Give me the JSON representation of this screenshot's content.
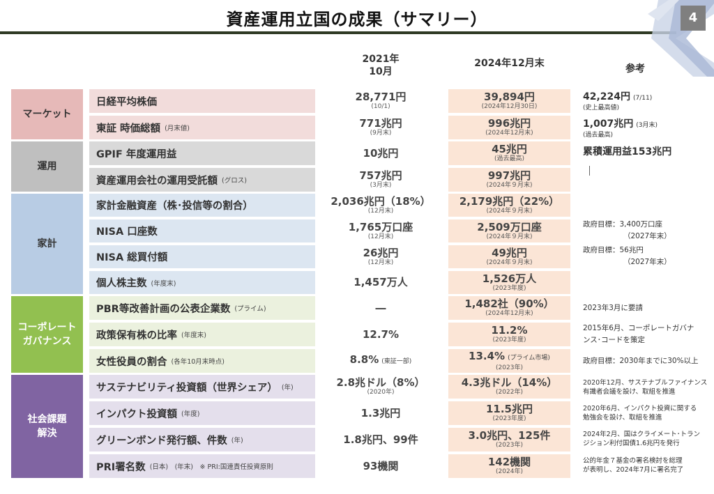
{
  "title": "資産運用立国の成果（サマリー）",
  "page_number": "4",
  "columns": {
    "col2021_line1": "2021年",
    "col2021_line2": "10月",
    "col2024": "2024年12月末",
    "ref": "参考"
  },
  "groups": {
    "market": "マーケット",
    "unyo": "運用",
    "kakei": "家計",
    "cg_line1": "コーポレート",
    "cg_line2": "ガバナンス",
    "social_line1": "社会課題",
    "social_line2": "解決"
  },
  "rows": [
    {
      "label": "日経平均株価",
      "sub": "",
      "v2021": "28,771円",
      "v2021_note": "(10/1)",
      "v2024": "39,894円",
      "v2024_note": "(2024年12月30日)",
      "ref_main": "42,224円",
      "ref_main_note": "(7/11)",
      "ref_sub": "(史上最高値)"
    },
    {
      "label": "東証 時価総額",
      "sub": "(月末値)",
      "v2021": "771兆円",
      "v2021_note": "(9月末)",
      "v2024": "996兆円",
      "v2024_note": "(2024年12月末)",
      "ref_main": "1,007兆円",
      "ref_main_note": "(3月末)",
      "ref_sub": "(過去最高)"
    },
    {
      "label": "GPIF 年度運用益",
      "sub": "",
      "v2021": "10兆円",
      "v2021_note": "",
      "v2024": "45兆円",
      "v2024_note": "(過去最高)",
      "ref_main": "累積運用益153兆円",
      "ref_main_note": "",
      "ref_sub": ""
    },
    {
      "label": "資産運用会社の運用受託額",
      "sub": "(グロス)",
      "v2021": "757兆円",
      "v2021_note": "(3月末)",
      "v2024": "997兆円",
      "v2024_note": "(2024年９月末)",
      "ref_main": "",
      "ref_main_note": "",
      "ref_sub": ""
    },
    {
      "label": "家計金融資産（株･投信等の割合）",
      "sub": "",
      "v2021": "2,036兆円（18%）",
      "v2021_note": "(12月末)",
      "v2024": "2,179兆円（22%）",
      "v2024_note": "(2024年９月末)",
      "ref_main": "",
      "ref_main_note": "",
      "ref_sub": ""
    },
    {
      "label": "NISA 口座数",
      "sub": "",
      "v2021": "1,765万口座",
      "v2021_note": "(12月末)",
      "v2024": "2,509万口座",
      "v2024_note": "(2024年９月末)",
      "ref_line1": "政府目標：3,400万口座",
      "ref_line2": "（2027年末）"
    },
    {
      "label": "NISA 総買付額",
      "sub": "",
      "v2021": "26兆円",
      "v2021_note": "(12月末)",
      "v2024": "49兆円",
      "v2024_note": "(2024年９月末)",
      "ref_line1": "政府目標：56兆円",
      "ref_line2": "（2027年末）"
    },
    {
      "label": "個人株主数",
      "sub": "(年度末)",
      "v2021": "1,457万人",
      "v2021_note": "",
      "v2024": "1,526万人",
      "v2024_note": "(2023年度)"
    },
    {
      "label": "PBR等改善計画の公表企業数",
      "sub": "(プライム)",
      "v2021": "―",
      "v2021_note": "",
      "v2024": "1,482社（90%）",
      "v2024_note": "(2024年12月末)",
      "ref_line1": "2023年3月に要請"
    },
    {
      "label": "政策保有株の比率",
      "sub": "(年度末)",
      "v2021": "12.7%",
      "v2021_note": "",
      "v2024": "11.2%",
      "v2024_note": "(2023年度)",
      "ref_line1": "2015年6月、コーポレートガバナ",
      "ref_line2": "ンス･コードを策定"
    },
    {
      "label": "女性役員の割合",
      "sub": "(各年10月末時点)",
      "v2021": "8.8%",
      "v2021_inline": "(東証一部)",
      "v2024": "13.4%",
      "v2024_inline": "(プライム市場)",
      "v2024_note": "(2023年)",
      "ref_line1": "政府目標：2030年までに30%以上"
    },
    {
      "label": "サステナビリティ投資額（世界シェア）",
      "sub": "(年)",
      "v2021": "2.8兆ドル（8%）",
      "v2021_note": "(2020年)",
      "v2024": "4.3兆ドル（14%）",
      "v2024_note": "(2022年)",
      "ref_line1": "2020年12月、サステナブルファイナンス",
      "ref_line2": "有識者会議を設け、取組を推進"
    },
    {
      "label": "インパクト投資額",
      "sub": "(年度)",
      "v2021": "1.3兆円",
      "v2021_note": "",
      "v2024": "11.5兆円",
      "v2024_note": "(2023年度)",
      "ref_line1": "2020年6月、インパクト投資に関する",
      "ref_line2": "勉強会を設け、取組を推進"
    },
    {
      "label": "グリーンボンド発行額、件数",
      "sub": "(年)",
      "v2021": "1.8兆円、99件",
      "v2021_note": "",
      "v2024": "3.0兆円、125件",
      "v2024_note": "(2023年)",
      "ref_line1": "2024年2月、国はクライメート･トラン",
      "ref_line2": "ジション利付国債1.6兆円を発行"
    },
    {
      "label": "PRI署名数",
      "sub": "(日本)　(年末)　※ PRI:国連責任投資原則",
      "v2021": "93機関",
      "v2021_note": "",
      "v2024": "142機関",
      "v2024_note": "(2024年)",
      "ref_line1": "公的年金７基金の署名検討を総理",
      "ref_line2": "が表明し、2024年7月に署名完了"
    }
  ],
  "colors": {
    "market": "#e6b9b8",
    "market_row": "#f2dcdb",
    "unyo": "#bfbfbf",
    "unyo_row": "#d9d9d9",
    "kakei": "#b8cce4",
    "kakei_row": "#dce6f1",
    "cg": "#92c050",
    "cg_row": "#ebf1de",
    "social": "#8064a2",
    "social_row": "#e4dfec",
    "highlight": "#fbe5d6"
  }
}
